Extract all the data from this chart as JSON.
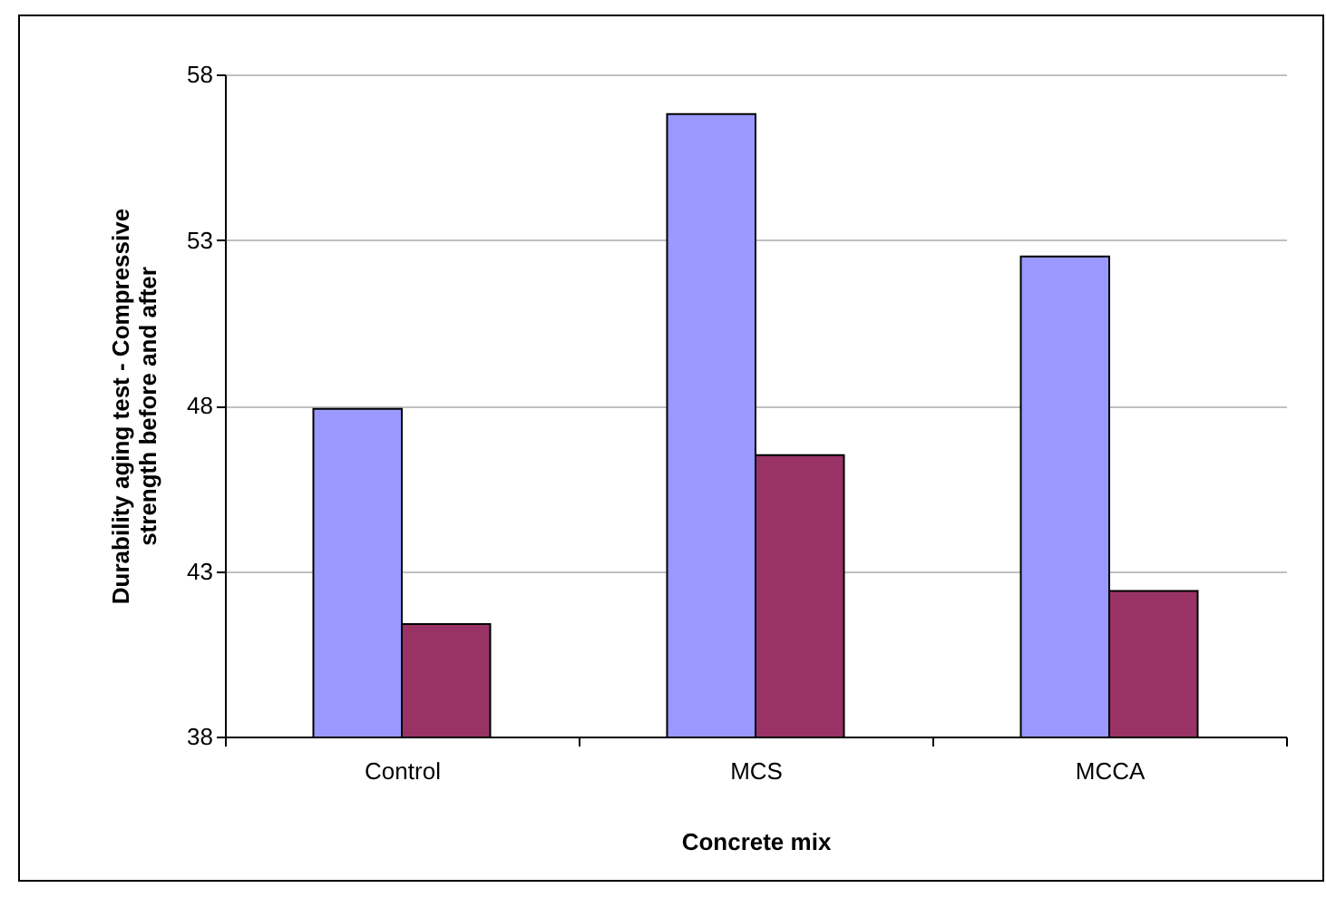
{
  "chart_data": {
    "type": "bar",
    "xlabel": "Concrete mix",
    "ylabel": "Durability aging test - Compressive strength before and after",
    "categories": [
      "Control",
      "MCS",
      "MCCA"
    ],
    "series": [
      {
        "color": "#9999ff",
        "values": [
          47.9,
          56.8,
          52.5
        ]
      },
      {
        "color": "#993366",
        "values": [
          41.4,
          46.5,
          42.4
        ]
      }
    ],
    "ylim": [
      38,
      58
    ],
    "yticks": [
      38,
      43,
      48,
      53,
      58
    ],
    "grid": "y"
  }
}
